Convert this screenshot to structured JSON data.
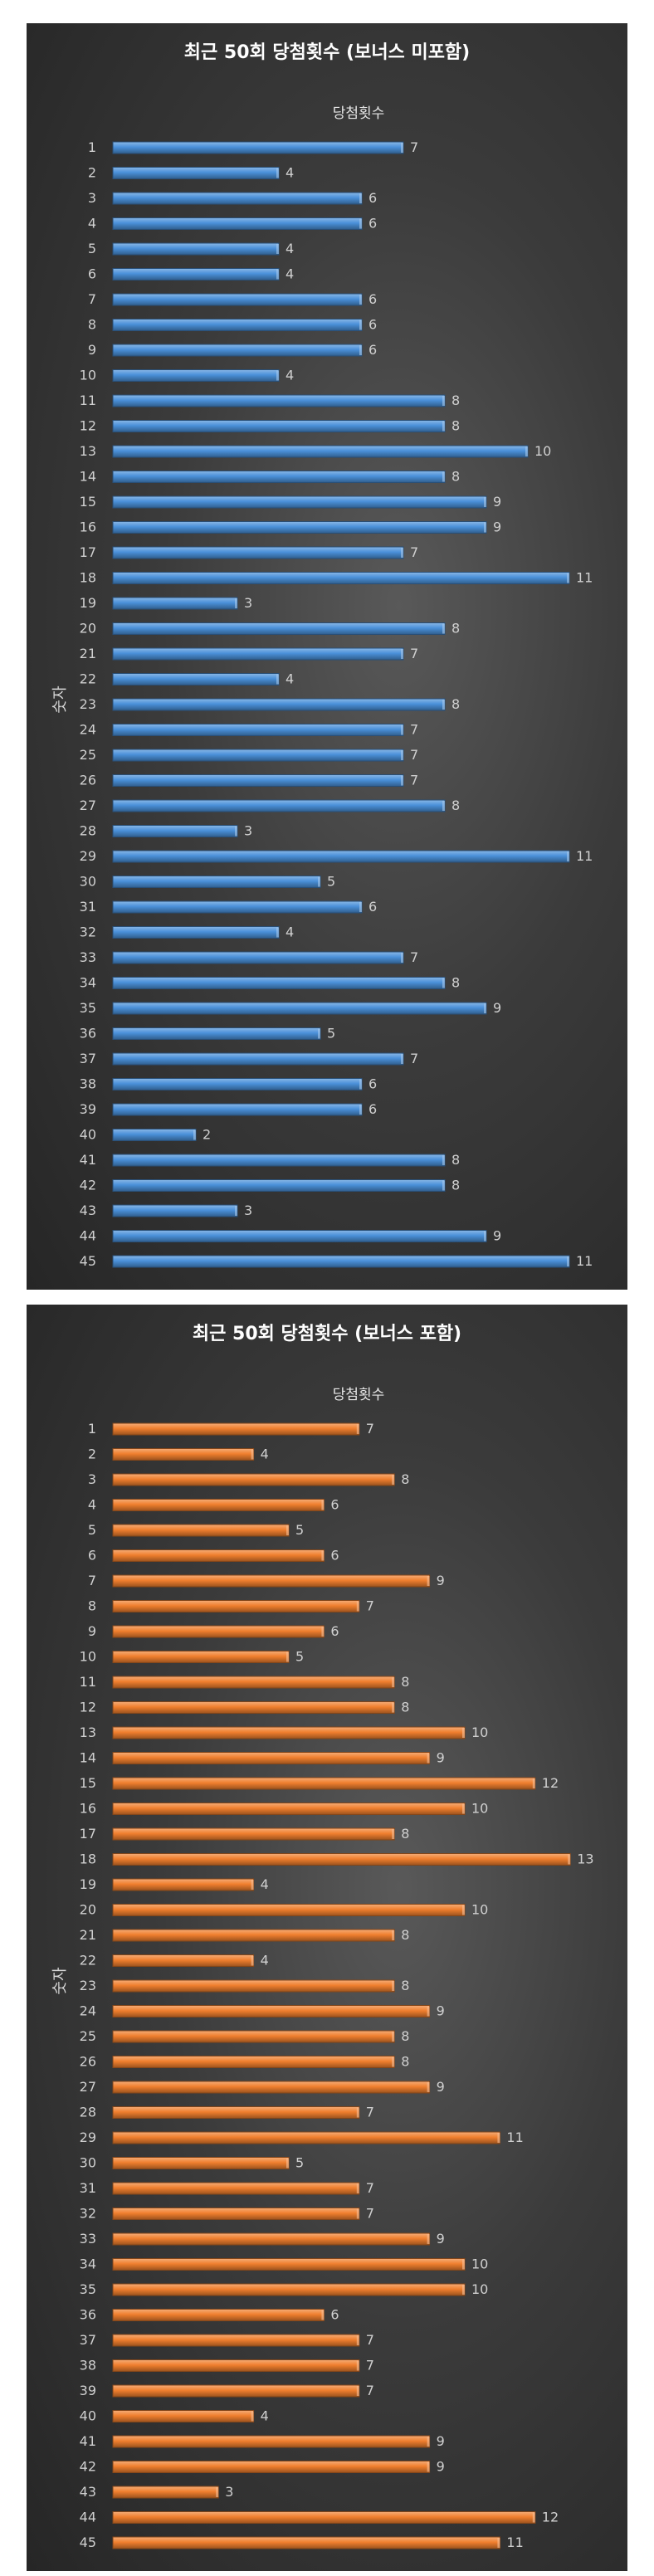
{
  "chart_data": [
    {
      "type": "bar",
      "orientation": "horizontal",
      "title": "최근 50회 당첨횟수 (보너스 미포함)",
      "ylabel": "숫자",
      "xlabel": "",
      "color": "#4a90d9",
      "categories": [
        "1",
        "2",
        "3",
        "4",
        "5",
        "6",
        "7",
        "8",
        "9",
        "10",
        "11",
        "12",
        "13",
        "14",
        "15",
        "16",
        "17",
        "18",
        "19",
        "20",
        "21",
        "22",
        "23",
        "24",
        "25",
        "26",
        "27",
        "28",
        "29",
        "30",
        "31",
        "32",
        "33",
        "34",
        "35",
        "36",
        "37",
        "38",
        "39",
        "40",
        "41",
        "42",
        "43",
        "44",
        "45"
      ],
      "series": [
        {
          "name": "당첨횟수",
          "values": [
            7,
            4,
            6,
            6,
            4,
            4,
            6,
            6,
            6,
            4,
            8,
            8,
            10,
            8,
            9,
            9,
            7,
            11,
            3,
            8,
            7,
            4,
            8,
            7,
            7,
            7,
            8,
            3,
            11,
            5,
            6,
            4,
            7,
            8,
            9,
            5,
            7,
            6,
            6,
            2,
            8,
            8,
            3,
            9,
            11
          ]
        }
      ],
      "xlim": [
        0,
        11
      ],
      "grid": false,
      "data_labels": true
    },
    {
      "type": "bar",
      "orientation": "horizontal",
      "title": "최근 50회 당첨횟수 (보너스 포함)",
      "ylabel": "숫자",
      "xlabel": "",
      "color": "#f07f2e",
      "categories": [
        "1",
        "2",
        "3",
        "4",
        "5",
        "6",
        "7",
        "8",
        "9",
        "10",
        "11",
        "12",
        "13",
        "14",
        "15",
        "16",
        "17",
        "18",
        "19",
        "20",
        "21",
        "22",
        "23",
        "24",
        "25",
        "26",
        "27",
        "28",
        "29",
        "30",
        "31",
        "32",
        "33",
        "34",
        "35",
        "36",
        "37",
        "38",
        "39",
        "40",
        "41",
        "42",
        "43",
        "44",
        "45"
      ],
      "series": [
        {
          "name": "당첨횟수",
          "values": [
            7,
            4,
            8,
            6,
            5,
            6,
            9,
            7,
            6,
            5,
            8,
            8,
            10,
            9,
            12,
            10,
            8,
            13,
            4,
            10,
            8,
            4,
            8,
            9,
            8,
            8,
            9,
            7,
            11,
            5,
            7,
            7,
            9,
            10,
            10,
            6,
            7,
            7,
            7,
            4,
            9,
            9,
            3,
            12,
            11
          ]
        }
      ],
      "xlim": [
        0,
        13
      ],
      "grid": false,
      "data_labels": true
    }
  ]
}
